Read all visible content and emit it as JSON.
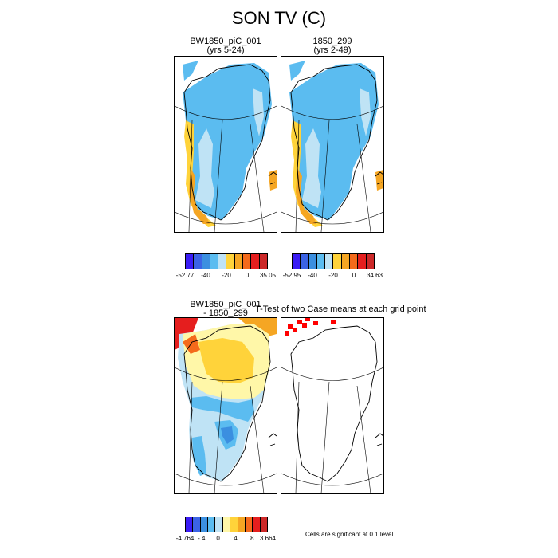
{
  "figure": {
    "title": "SON TV (C)",
    "significance_note": "Cells are significant at 0.1 level"
  },
  "panels": [
    {
      "title": "BW1850_piC_001",
      "subtitle": "(yrs 5-24)",
      "colorbar": {
        "labels": [
          "-52.77",
          "-40",
          "-20",
          "0",
          "35.05"
        ],
        "colors": [
          "#3a1cf5",
          "#3b63e6",
          "#3b8fe0",
          "#5bbcf0",
          "#bfe3f5",
          "#ffd33a",
          "#f5a623",
          "#f46a1b",
          "#e51e1e",
          "#cc2828"
        ]
      }
    },
    {
      "title": "1850_299",
      "subtitle": "(yrs 2-49)",
      "colorbar": {
        "labels": [
          "-52.95",
          "-40",
          "-20",
          "0",
          "34.63"
        ],
        "colors": [
          "#3a1cf5",
          "#3b63e6",
          "#3b8fe0",
          "#5bbcf0",
          "#bfe3f5",
          "#ffd33a",
          "#f5a623",
          "#f46a1b",
          "#e51e1e",
          "#cc2828"
        ]
      }
    },
    {
      "title": "BW1850_piC_001",
      "subtitle": "- 1850_299",
      "colorbar": {
        "labels": [
          "-4.764",
          "-.4",
          "0",
          ".4",
          ".8",
          "3.664"
        ],
        "colors": [
          "#3a1cf5",
          "#3b63e6",
          "#3b8fe0",
          "#5bbcf0",
          "#bfe3f5",
          "#fff7a8",
          "#ffd33a",
          "#f5a623",
          "#f46a1b",
          "#e51e1e",
          "#cc2828"
        ]
      }
    },
    {
      "title": "T-Test of two Case means at each grid point",
      "subtitle": ""
    }
  ],
  "colors": {
    "ocean": "#ffffff",
    "lightblue": "#bfe3f5",
    "blue": "#5bbcf0",
    "midblue": "#3b8fe0",
    "yellow": "#ffd33a",
    "paleyellow": "#fff7a8",
    "orange": "#f5a623",
    "red": "#e51e1e",
    "sigred": "#ff0000"
  }
}
